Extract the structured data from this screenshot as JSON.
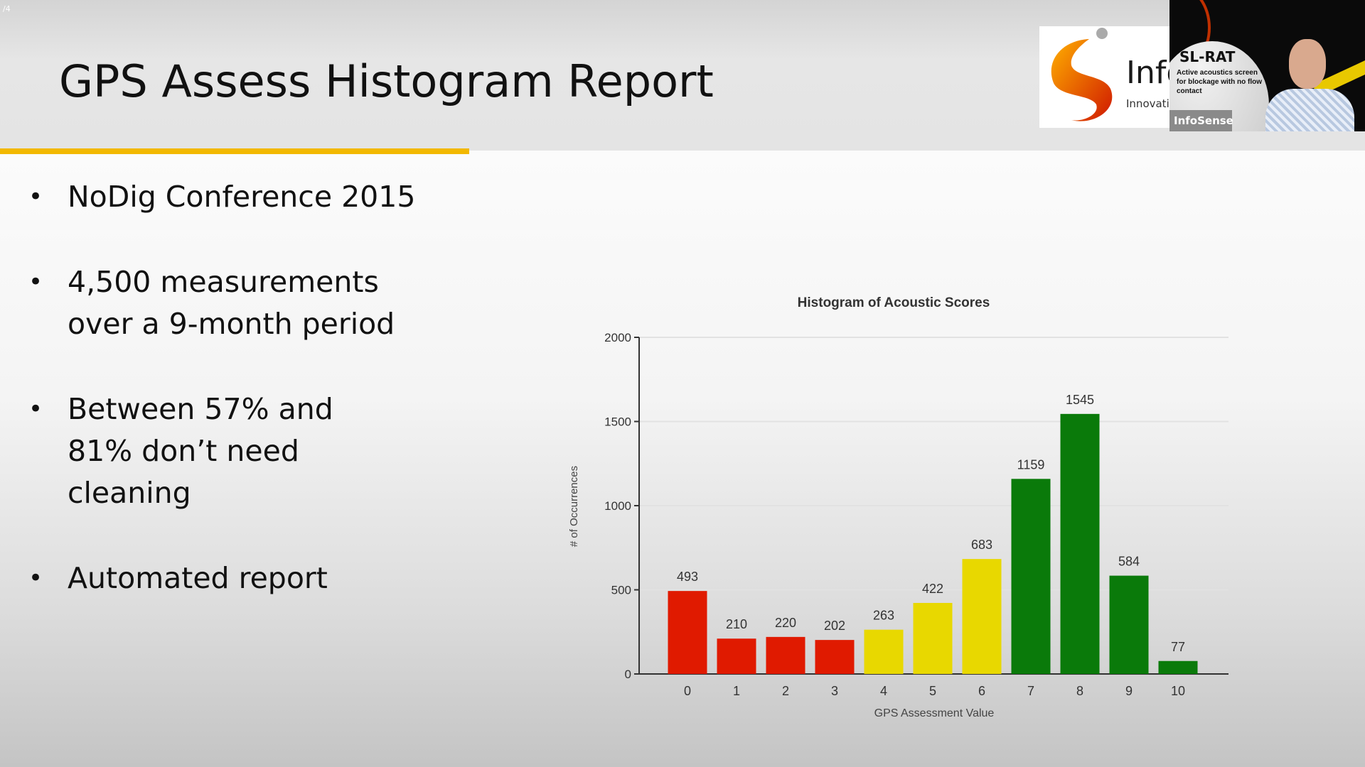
{
  "slide": {
    "page_indicator": "/4",
    "title": "GPS Assess Histogram Report",
    "accent_color": "#f2b800",
    "bullets": [
      "NoDig Conference 2015",
      "4,500 measurements over a 9-month period",
      "Between 57% and 81% don’t need cleaning",
      "Automated report"
    ]
  },
  "logo": {
    "brand": "Info",
    "tagline": "Innovatin"
  },
  "video_overlay": {
    "product": "SL-RAT",
    "description": "Active acoustics screen for blockage with no flow contact",
    "badge": "InfoSense"
  },
  "chart_data": {
    "type": "bar",
    "title": "Histogram of Acoustic Scores",
    "xlabel": "GPS Assessment Value",
    "ylabel": "# of Occurrences",
    "categories": [
      "0",
      "1",
      "2",
      "3",
      "4",
      "5",
      "6",
      "7",
      "8",
      "9",
      "10"
    ],
    "values": [
      493,
      210,
      220,
      202,
      263,
      422,
      683,
      1159,
      1545,
      584,
      77
    ],
    "colors": [
      "#e01a00",
      "#e01a00",
      "#e01a00",
      "#e01a00",
      "#e8d800",
      "#e8d800",
      "#e8d800",
      "#0a7a0a",
      "#0a7a0a",
      "#0a7a0a",
      "#0a7a0a"
    ],
    "ylim": [
      0,
      2000
    ],
    "yticks": [
      0,
      500,
      1000,
      1500,
      2000
    ],
    "grid": true,
    "data_labels": true
  }
}
